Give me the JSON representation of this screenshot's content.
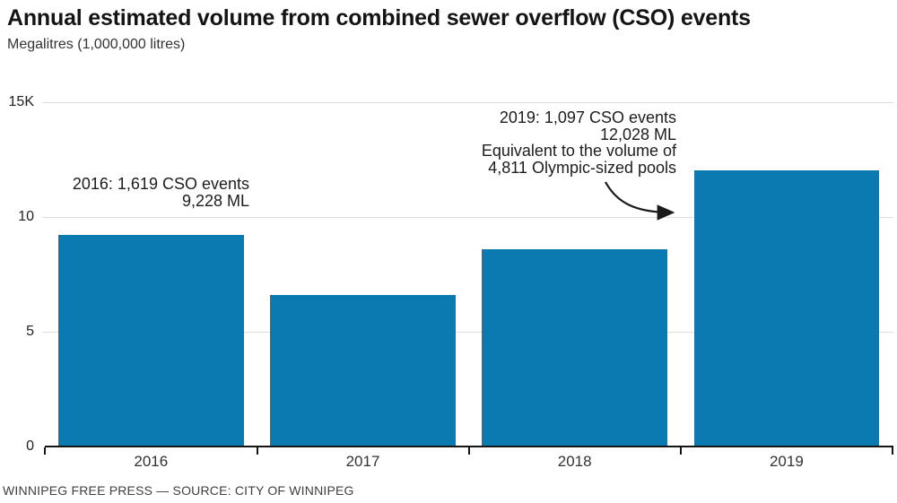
{
  "header": {
    "title": "Annual estimated volume from combined sewer overflow (CSO) events",
    "subtitle": "Megalitres (1,000,000 litres)"
  },
  "annotations": {
    "y2016": {
      "line1": "2016: 1,619 CSO events",
      "line2": "9,228 ML"
    },
    "y2019": {
      "line1": "2019: 1,097 CSO events",
      "line2": "12,028 ML",
      "line3": "Equivalent to the volume of",
      "line4": "4,811 Olympic-sized pools"
    }
  },
  "footer": {
    "text": "WINNIPEG FREE PRESS — SOURCE: CITY OF WINNIPEG"
  },
  "chart_data": {
    "type": "bar",
    "title": "Annual estimated volume from combined sewer overflow (CSO) events",
    "ylabel": "Megalitres (1,000,000 litres)",
    "xlabel": "",
    "categories": [
      "2016",
      "2017",
      "2018",
      "2019"
    ],
    "values": [
      9228,
      6600,
      8600,
      12028
    ],
    "y_ticks": [
      {
        "label": "15K",
        "value": 15000
      },
      {
        "label": "10",
        "value": 10000
      },
      {
        "label": "5",
        "value": 5000
      },
      {
        "label": "0",
        "value": 0
      }
    ],
    "ylim": [
      0,
      15000
    ],
    "grid": "horizontal",
    "legend": "none",
    "bar_color": "#0b7ab0",
    "annotated_points": [
      {
        "category": "2016",
        "cso_events": 1619,
        "volume_ml": 9228
      },
      {
        "category": "2019",
        "cso_events": 1097,
        "volume_ml": 12028,
        "note": "Equivalent to the volume of 4,811 Olympic-sized pools"
      }
    ]
  }
}
